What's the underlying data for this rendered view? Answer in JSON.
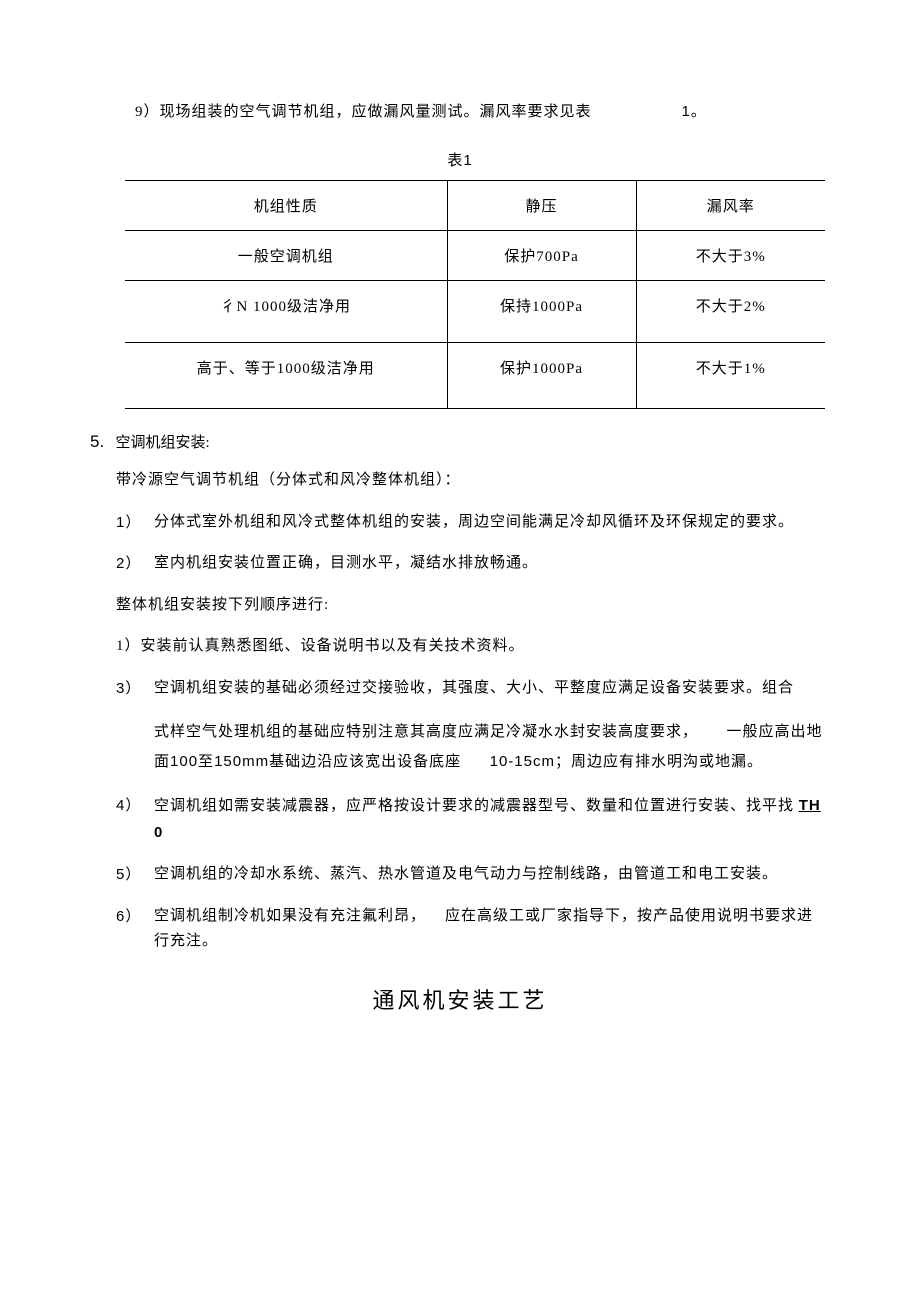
{
  "line9": {
    "prefix": "9）",
    "text": "现场组装的空气调节机组，应做漏风量测试。漏风率要求见表",
    "ref": "1",
    "suffix": "。"
  },
  "table": {
    "caption_prefix": "表",
    "caption_num": "1",
    "headers": [
      "机组性质",
      "静压",
      "漏风率"
    ],
    "rows": [
      [
        "一般空调机组",
        "保护700Pa",
        "不大于3%"
      ],
      [
        "彳N 1000级洁净用",
        "保持1000Pa",
        "不大于2%"
      ],
      [
        "高于、等于1000级洁净用",
        "保护1000Pa",
        "不大于1%"
      ]
    ]
  },
  "section5": {
    "num": "5.",
    "title": "空调机组安装:"
  },
  "p_cold": "带冷源空气调节机组（分体式和风冷整体机组）：",
  "item1": {
    "marker": "1）",
    "text": "分体式室外机组和风冷式整体机组的安装，周边空间能满足冷却风循环及环保规定的要求。"
  },
  "item2": {
    "marker": "2）",
    "text": "室内机组安装位置正确，目测水平，凝结水排放畅通。"
  },
  "p_whole": "整体机组安装按下列顺序进行:",
  "seq1": "1）安装前认真熟悉图纸、设备说明书以及有关技术资料。",
  "item3": {
    "marker": "3）",
    "text": "空调机组安装的基础必须经过交接验收，其强度、大小、平整度应满足设备安装要求。组合"
  },
  "item3b": {
    "line1_a": "式样空气处理机组的基础应特别注意其高度应满足冷凝水水封安装高度要求，",
    "line1_b": "一般应高出地",
    "line2_a": "面",
    "line2_b": "100",
    "line2_c": "至",
    "line2_d": "150mm",
    "line2_e": "基础边沿应该宽出设备底座",
    "line2_f": "10-15cm",
    "line2_g": "；周边应有排水明沟或地漏。"
  },
  "item4": {
    "marker": "4）",
    "text_a": "空调机组如需安装减震器，应严格按设计要求的减震器型号、数量和位置进行安装、找平找 ",
    "text_b": "TH",
    "text_c": " 0"
  },
  "item5": {
    "marker": "5）",
    "text": "空调机组的冷却水系统、蒸汽、热水管道及电气动力与控制线路，由管道工和电工安装。"
  },
  "item6": {
    "marker": "6）",
    "text_a": "空调机组制冷机如果没有充注氟利昂，",
    "text_b": "应在高级工或厂家指导下，按产品使用说明书要求进",
    "text_c": "行充注。"
  },
  "heading": "通风机安装工艺"
}
